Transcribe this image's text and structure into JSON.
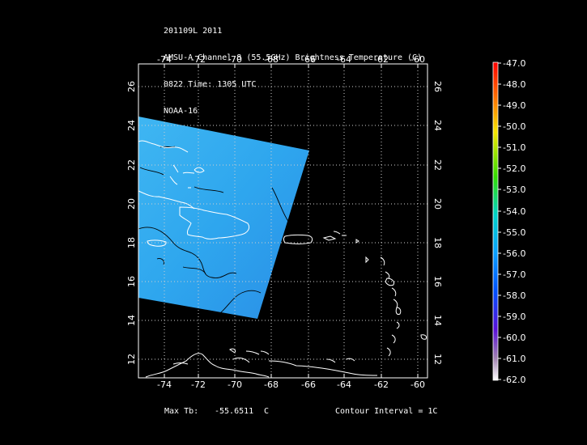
{
  "header": {
    "line1": "201109L 2011",
    "line2": "AMSU-A Channel 8 (55.5GHz) Brightness Temperature (C)",
    "line3": "0822 Time: 1305 UTC",
    "line4": "NOAA-16"
  },
  "map": {
    "lon_ticks_top": [
      "-74",
      "-72",
      "-70",
      "-68",
      "-66",
      "-64",
      "-62",
      "-60"
    ],
    "lon_ticks_bottom": [
      "-74",
      "-72",
      "-70",
      "-68",
      "-66",
      "-64",
      "-62",
      "-60"
    ],
    "lat_ticks_left": [
      "26",
      "24",
      "22",
      "20",
      "18",
      "16",
      "14",
      "12"
    ],
    "lat_ticks_right": [
      "26",
      "24",
      "22",
      "20",
      "18",
      "16",
      "14",
      "12"
    ],
    "lon_range": [
      -75.1,
      -59.6
    ],
    "lat_range": [
      11.0,
      27.1
    ],
    "grid": true,
    "swath_color": "#33a9f0"
  },
  "colorbar": {
    "labels": [
      "-47.0",
      "-48.0",
      "-49.0",
      "-50.0",
      "-51.0",
      "-52.0",
      "-53.0",
      "-54.0",
      "-55.0",
      "-56.0",
      "-57.0",
      "-58.0",
      "-59.0",
      "-60.0",
      "-61.0",
      "-62.0"
    ]
  },
  "footer": {
    "max_label": "Max Tb:",
    "max_value": "-55.6511",
    "max_unit": "C",
    "contour": "Contour Interval = 1C"
  }
}
